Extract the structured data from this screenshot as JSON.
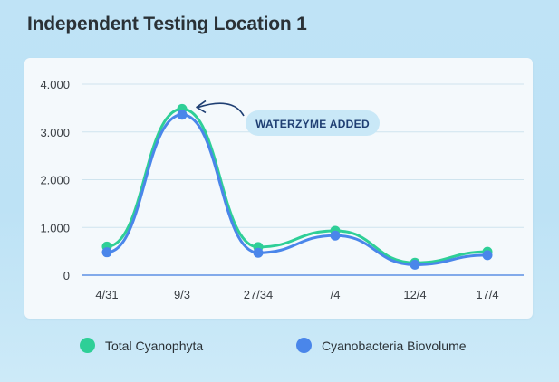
{
  "title": "Independent Testing Location 1",
  "chart_data": {
    "type": "line",
    "categories": [
      "4/31",
      "9/3",
      "27/34",
      "/4",
      "12/4",
      "17/4"
    ],
    "series": [
      {
        "name": "Total Cyanophyta",
        "color": "#2ecf97",
        "values": [
          600,
          3480,
          590,
          930,
          260,
          490
        ]
      },
      {
        "name": "Cyanobacteria Biovolume",
        "color": "#4a86ea",
        "values": [
          480,
          3360,
          470,
          830,
          220,
          420
        ]
      }
    ],
    "ylim": [
      0,
      4000
    ],
    "yticks": [
      0,
      1000,
      2000,
      3000,
      4000
    ],
    "ytick_labels": [
      "0",
      "1.000",
      "2.000",
      "3.000",
      "4.000"
    ],
    "grid": true,
    "legend_position": "bottom",
    "annotation": {
      "text": "WATERZYME ADDED",
      "category": "9/3",
      "arrow_color": "#1f3f73"
    }
  }
}
